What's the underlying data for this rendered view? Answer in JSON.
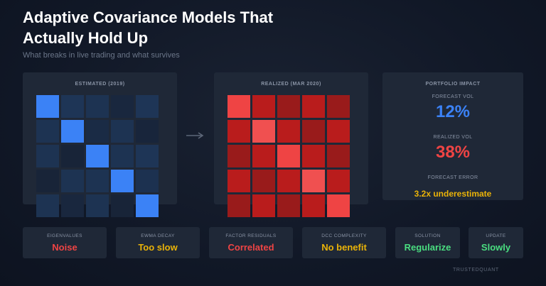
{
  "header": {
    "title": "Adaptive Covariance Models That Actually Hold Up",
    "subtitle": "What breaks in live trading and what survives"
  },
  "estimated": {
    "label": "ESTIMATED (2019)",
    "watermark": "",
    "cells": [
      "#3b82f6",
      "#1e3556",
      "#1d3352",
      "#19273e",
      "#1e3556",
      "#1d3352",
      "#3b82f6",
      "#1a2b45",
      "#1d3352",
      "#18253b",
      "#1d3352",
      "#182438",
      "#3b82f6",
      "#1d3352",
      "#1e3556",
      "#182438",
      "#1d3352",
      "#1d3352",
      "#3b82f6",
      "#1c3150",
      "#1d3352",
      "#19273e",
      "#1d3352",
      "#182438",
      "#3b82f6"
    ]
  },
  "arrow_icon": "right-arrow",
  "realized": {
    "label": "REALIZED (MAR 2020)",
    "watermark": "",
    "cells": [
      "#ef4444",
      "#b91c1c",
      "#991b1b",
      "#b91c1c",
      "#991b1b",
      "#b91c1c",
      "#f05050",
      "#b91c1c",
      "#991b1b",
      "#b91c1c",
      "#991b1b",
      "#b91c1c",
      "#ef4444",
      "#b91c1c",
      "#991b1b",
      "#b91c1c",
      "#991b1b",
      "#b91c1c",
      "#f05050",
      "#b91c1c",
      "#991b1b",
      "#b91c1c",
      "#991b1b",
      "#b91c1c",
      "#ef4444"
    ]
  },
  "impact": {
    "label": "PORTFOLIO IMPACT",
    "forecast_label": "FORECAST VOL",
    "forecast_value": "12%",
    "realized_label": "REALIZED VOL",
    "realized_value": "38%",
    "error_label": "FORECAST ERROR",
    "error_value": "3.2x underestimate"
  },
  "cards": [
    {
      "label": "EIGENVALUES",
      "value": "Noise",
      "color": "#ef4444"
    },
    {
      "label": "EWMA DECAY",
      "value": "Too slow",
      "color": "#eab308"
    },
    {
      "label": "FACTOR RESIDUALS",
      "value": "Correlated",
      "color": "#ef4444"
    },
    {
      "label": "DCC COMPLEXITY",
      "value": "No benefit",
      "color": "#eab308"
    },
    {
      "label": "SOLUTION",
      "value": "Regularize",
      "color": "#4ade80"
    },
    {
      "label": "UPDATE",
      "value": "Slowly",
      "color": "#4ade80"
    }
  ],
  "colors": {
    "blue_accent": "#3b82f6",
    "red_accent": "#ef4444",
    "yellow_accent": "#eab308",
    "green_accent": "#4ade80"
  },
  "brand": "TRUSTEDQUANT"
}
